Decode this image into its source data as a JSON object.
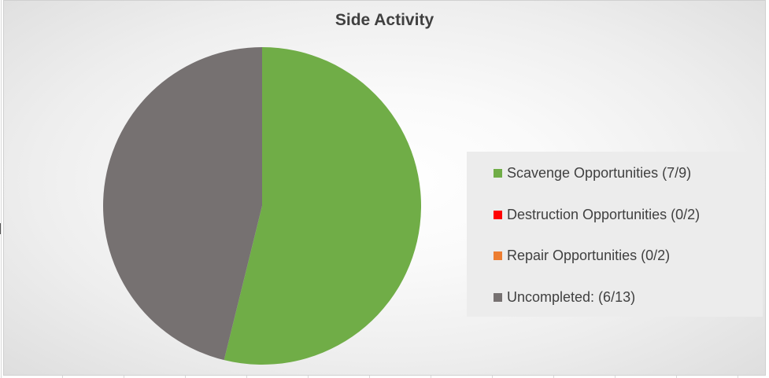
{
  "chart_data": {
    "type": "pie",
    "title": "Side Activity",
    "slices": [
      {
        "label": "Scavenge Opportunities (7/9)",
        "value": 7,
        "color": "#70ad47"
      },
      {
        "label": "Destruction Opportunities (0/2)",
        "value": 0,
        "color": "#ff0000"
      },
      {
        "label": "Repair Opportunities (0/2)",
        "value": 0,
        "color": "#ed7d31"
      },
      {
        "label": "Uncompleted: (6/13)",
        "value": 6,
        "color": "#767171"
      }
    ],
    "legend_position": "right"
  }
}
